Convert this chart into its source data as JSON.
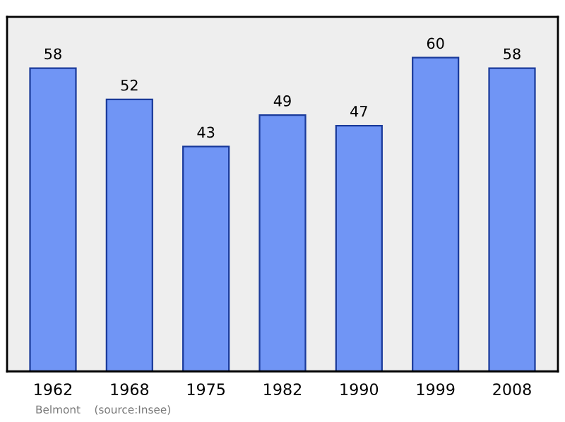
{
  "chart_data": {
    "type": "bar",
    "categories": [
      "1962",
      "1968",
      "1975",
      "1982",
      "1990",
      "1999",
      "2008"
    ],
    "values": [
      58,
      52,
      43,
      49,
      47,
      60,
      58
    ],
    "color": "#7095f5",
    "data_labels": true,
    "grid": false,
    "annotations": [
      "Belmont    (source:Insee)"
    ]
  }
}
